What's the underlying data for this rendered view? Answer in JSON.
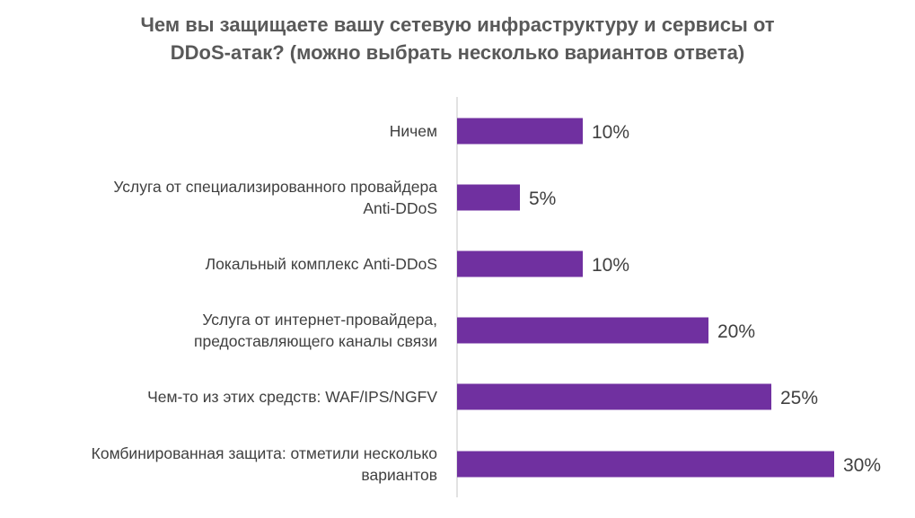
{
  "chart_data": {
    "type": "bar",
    "orientation": "horizontal",
    "title_lines": [
      "Чем вы защищаете вашу сетевую инфраструктуру и сервисы от",
      "DDoS-атак? (можно выбрать несколько вариантов ответа)"
    ],
    "categories": [
      [
        "Ничем"
      ],
      [
        "Услуга от специализированного провайдера",
        "Anti-DDoS"
      ],
      [
        "Локальный комплекс Anti-DDoS"
      ],
      [
        "Услуга от интернет-провайдера,",
        "предоставляющего каналы связи"
      ],
      [
        "Чем-то из этих средств: WAF/IPS/NGFV"
      ],
      [
        "Комбинированная защита: отметили несколько",
        "вариантов"
      ]
    ],
    "values": [
      10,
      5,
      10,
      20,
      25,
      30
    ],
    "value_labels": [
      "10%",
      "5%",
      "10%",
      "20%",
      "25%",
      "30%"
    ],
    "xlim": [
      0,
      30
    ],
    "bar_color": "#7030A0",
    "grid": false,
    "legend": "none"
  }
}
